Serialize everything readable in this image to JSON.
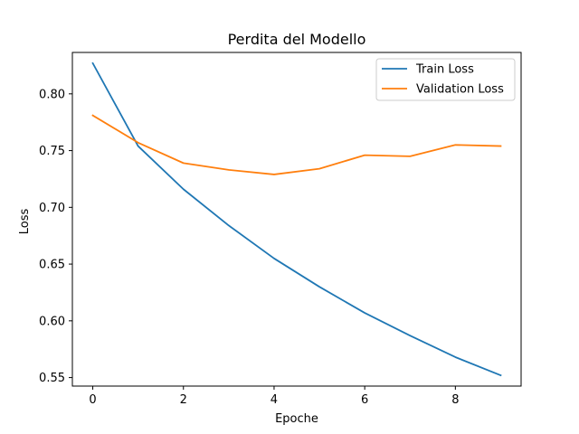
{
  "chart_data": {
    "type": "line",
    "title": "Perdita del Modello",
    "xlabel": "Epoche",
    "ylabel": "Loss",
    "x": [
      0,
      1,
      2,
      3,
      4,
      5,
      6,
      7,
      8,
      9
    ],
    "xlim": [
      -0.45,
      9.45
    ],
    "ylim": [
      0.5425,
      0.8365
    ],
    "xticks": [
      0,
      2,
      4,
      6,
      8
    ],
    "xtick_labels": [
      "0",
      "2",
      "4",
      "6",
      "8"
    ],
    "yticks": [
      0.55,
      0.6,
      0.65,
      0.7,
      0.75,
      0.8
    ],
    "ytick_labels": [
      "0.55",
      "0.60",
      "0.65",
      "0.70",
      "0.75",
      "0.80"
    ],
    "grid": false,
    "legend_position": "top-right",
    "series": [
      {
        "name": "Train Loss",
        "color": "#1f77b4",
        "values": [
          0.827,
          0.754,
          0.716,
          0.684,
          0.655,
          0.63,
          0.607,
          0.587,
          0.568,
          0.552
        ]
      },
      {
        "name": "Validation Loss",
        "color": "#ff7f0e",
        "values": [
          0.781,
          0.757,
          0.739,
          0.733,
          0.729,
          0.734,
          0.746,
          0.745,
          0.755,
          0.754
        ]
      }
    ]
  }
}
